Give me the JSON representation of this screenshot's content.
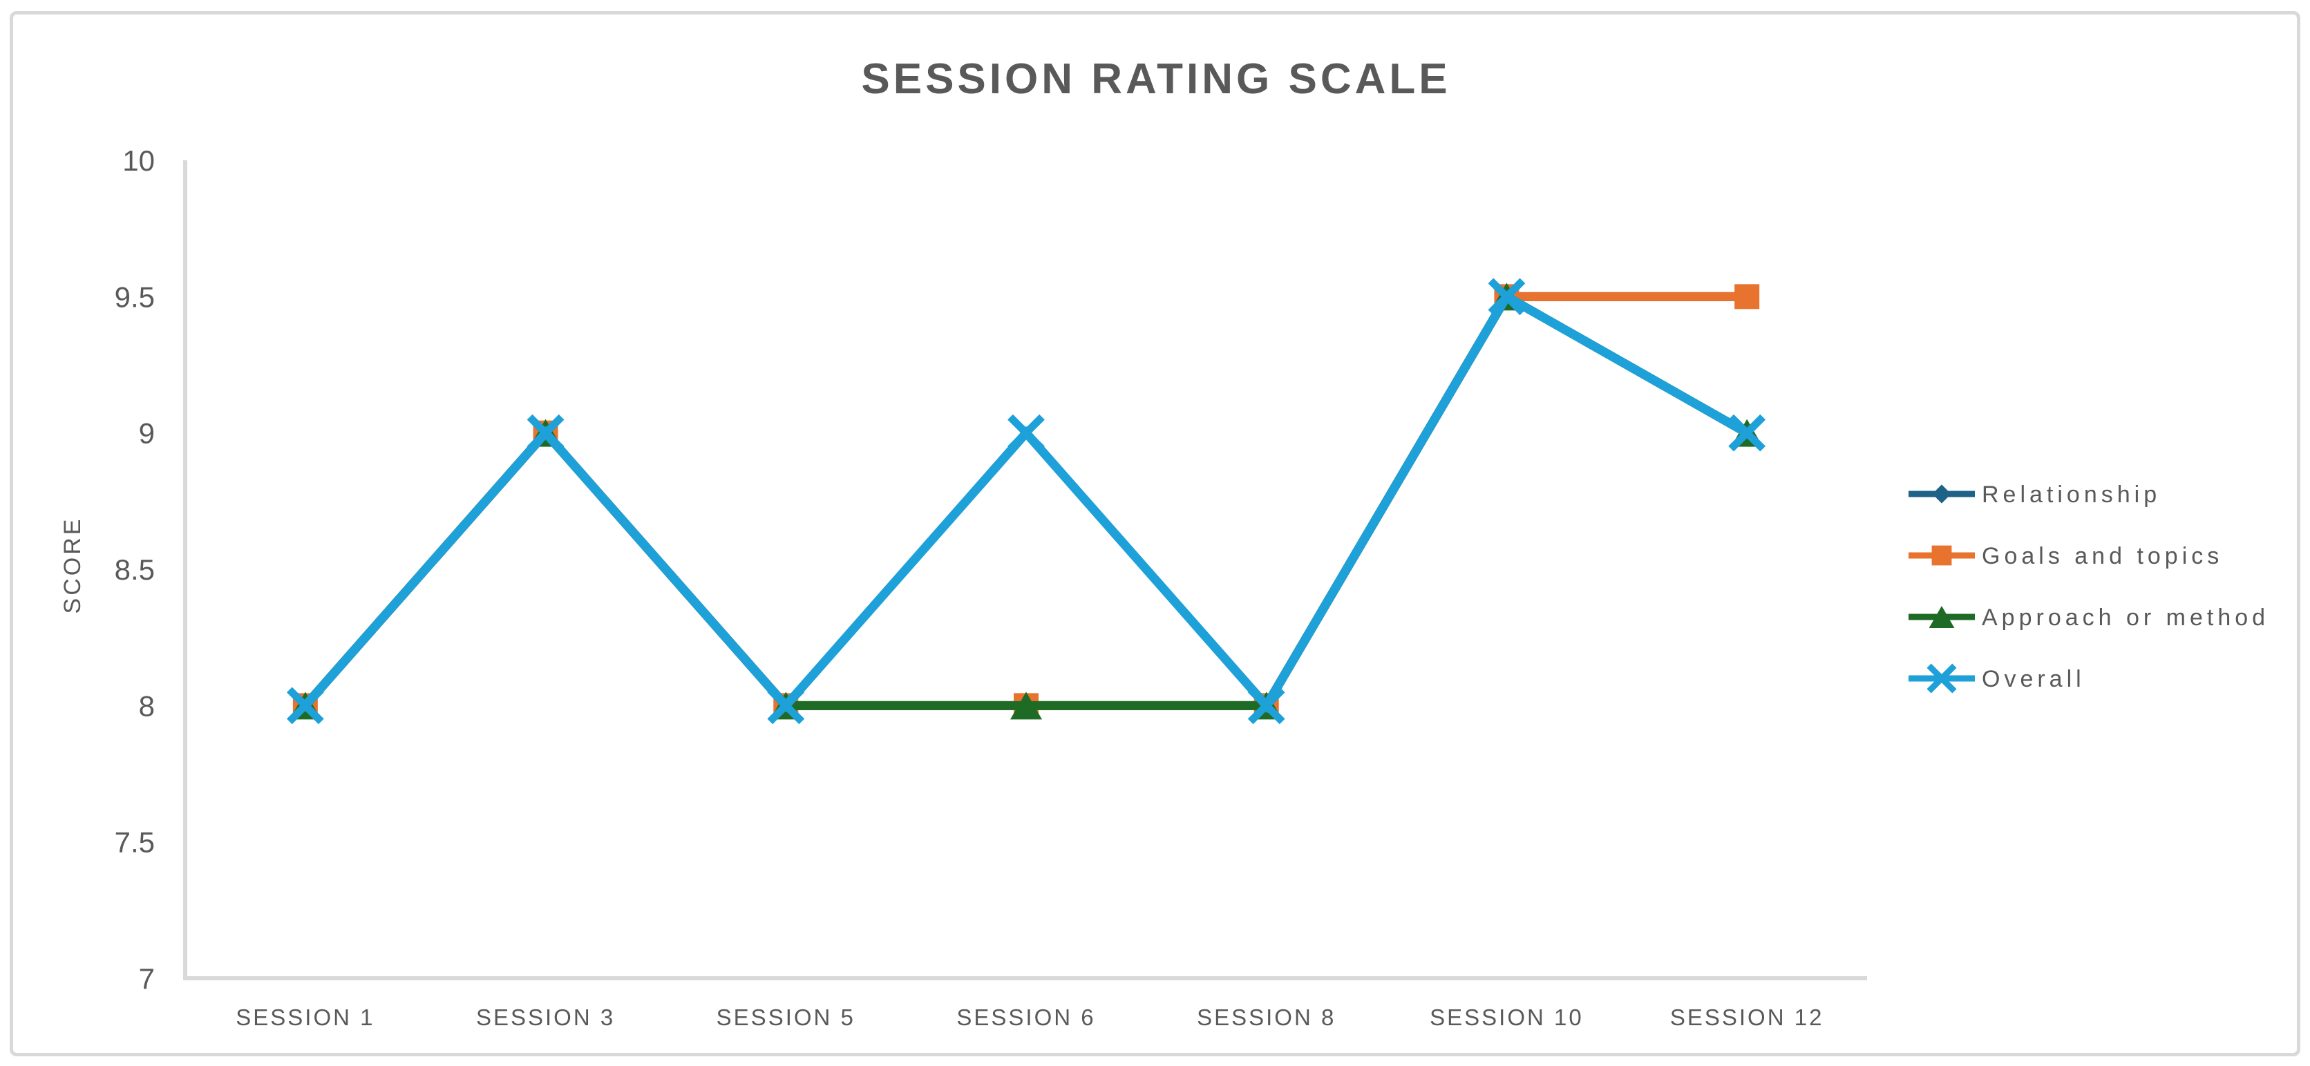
{
  "chart_data": {
    "type": "line",
    "title": "SESSION RATING SCALE",
    "xlabel": "",
    "ylabel": "SCORE",
    "categories": [
      "SESSION 1",
      "SESSION 3",
      "SESSION 5",
      "SESSION 6",
      "SESSION 8",
      "SESSION 10",
      "SESSION 12"
    ],
    "ylim": [
      7,
      10
    ],
    "yticks": [
      7,
      7.5,
      8,
      8.5,
      9,
      9.5,
      10
    ],
    "ytick_labels": [
      "7",
      "7.5",
      "8",
      "8.5",
      "9",
      "9.5",
      "10"
    ],
    "grid": false,
    "legend_position": "right",
    "series": [
      {
        "name": "Relationship",
        "color": "#1E6288",
        "marker": "diamond",
        "values": [
          8,
          9,
          8,
          8,
          8,
          9.5,
          9.5
        ]
      },
      {
        "name": "Goals and topics",
        "color": "#E8732E",
        "marker": "square",
        "values": [
          8,
          9,
          8,
          8,
          8,
          9.5,
          9.5
        ]
      },
      {
        "name": "Approach or method",
        "color": "#1E6B26",
        "marker": "triangle",
        "values": [
          8,
          9,
          8,
          8,
          8,
          9.5,
          9
        ]
      },
      {
        "name": "Overall",
        "color": "#1EA0D9",
        "marker": "x",
        "values": [
          8,
          9,
          8,
          9,
          8,
          9.5,
          9
        ]
      }
    ],
    "colors": {
      "axis": "#D9D9D9",
      "border": "#D9D9D9",
      "text": "#595959"
    }
  }
}
